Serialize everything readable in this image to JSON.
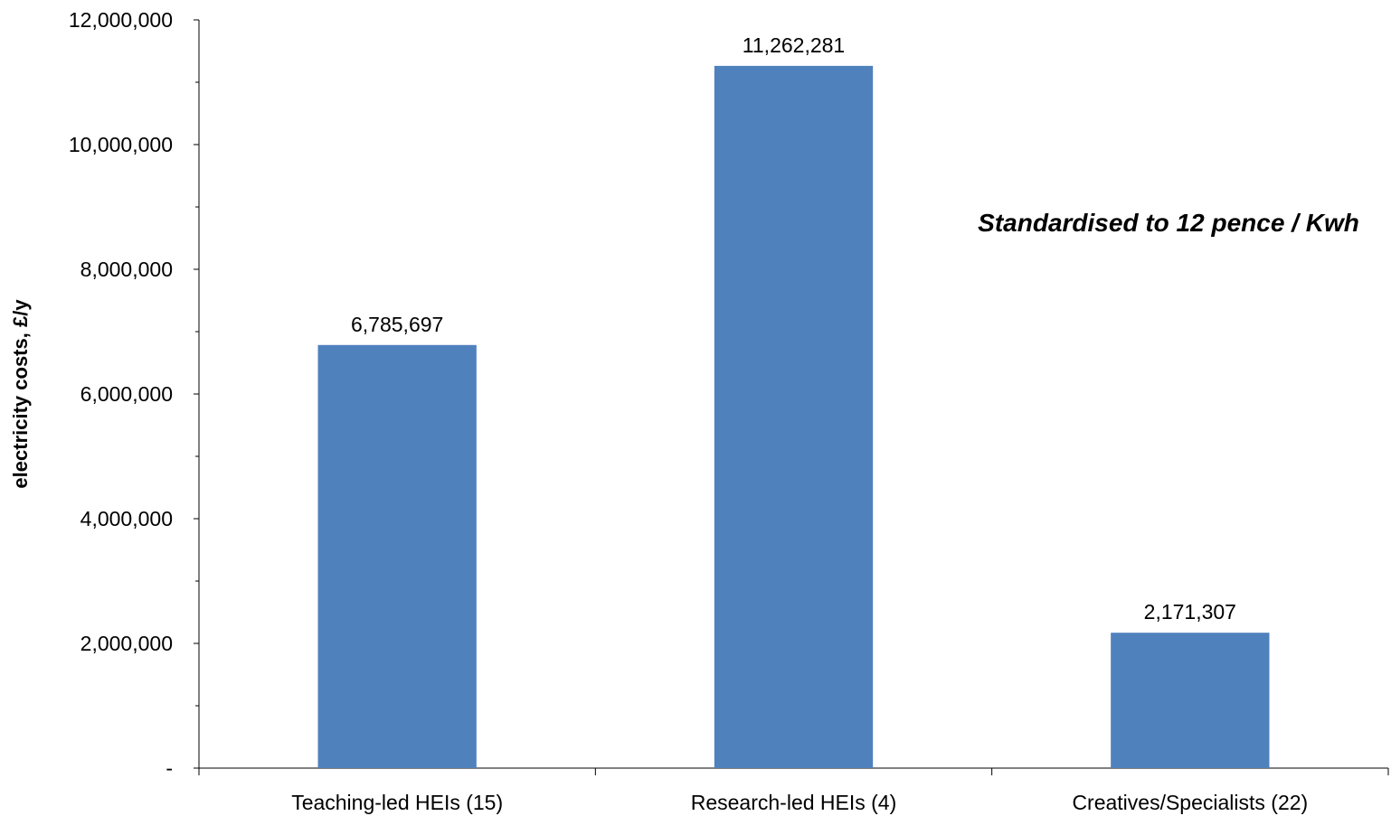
{
  "chart_data": {
    "type": "bar",
    "categories": [
      "Teaching-led HEIs (15)",
      "Research-led HEIs (4)",
      "Creatives/Specialists (22)"
    ],
    "values": [
      6785697,
      11262281,
      2171307
    ],
    "value_labels": [
      "6,785,697",
      "11,262,281",
      "2,171,307"
    ],
    "ylabel": "electricity costs, £/y",
    "xlabel": "",
    "ylim": [
      0,
      12000000
    ],
    "yticks": [
      0,
      2000000,
      4000000,
      6000000,
      8000000,
      10000000,
      12000000
    ],
    "ytick_labels": [
      "-",
      "2,000,000",
      "4,000,000",
      "6,000,000",
      "8,000,000",
      "10,000,000",
      "12,000,000"
    ],
    "annotation": "Standardised to 12 pence / Kwh",
    "bar_color": "#4f81bd",
    "grid": false,
    "legend": "none"
  }
}
